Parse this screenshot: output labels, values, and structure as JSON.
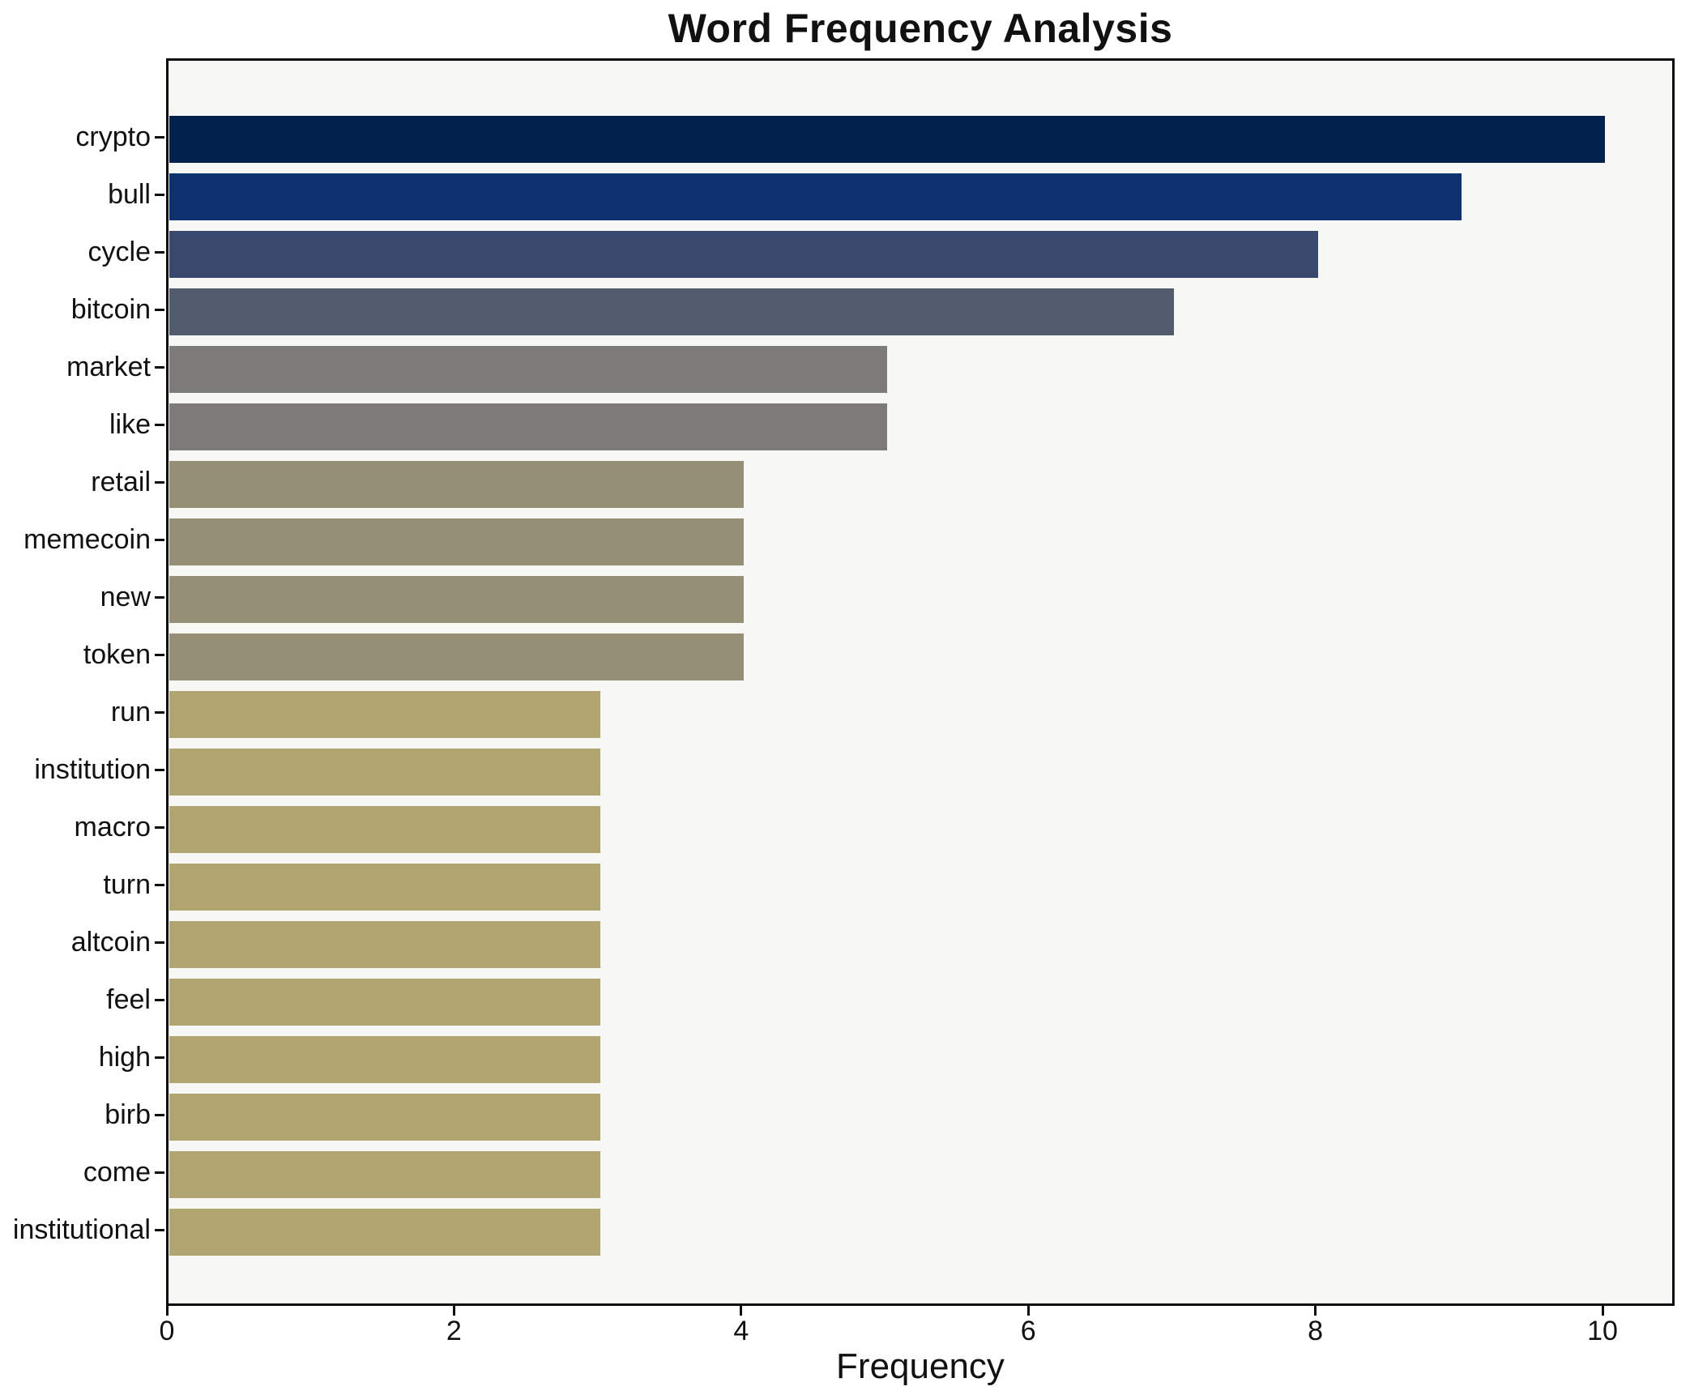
{
  "figure": {
    "background": "#ffffff",
    "plot_background": "#f7f7f5",
    "spine_color": "#0e0e0e",
    "text_color": "#111111"
  },
  "chart_data": {
    "type": "bar",
    "orientation": "horizontal",
    "title": "Word Frequency Analysis",
    "xlabel": "Frequency",
    "ylabel": "",
    "grid": false,
    "legend": false,
    "xlim": [
      0,
      10.5
    ],
    "xticks": [
      0,
      2,
      4,
      6,
      8,
      10
    ],
    "categories": [
      "crypto",
      "bull",
      "cycle",
      "bitcoin",
      "market",
      "like",
      "retail",
      "memecoin",
      "new",
      "token",
      "run",
      "institution",
      "macro",
      "turn",
      "altcoin",
      "feel",
      "high",
      "birb",
      "come",
      "institutional"
    ],
    "values": [
      10,
      9,
      8,
      7,
      5,
      5,
      4,
      4,
      4,
      4,
      3,
      3,
      3,
      3,
      3,
      3,
      3,
      3,
      3,
      3
    ],
    "bar_colors": [
      "#02214c",
      "#0e3270",
      "#39496d",
      "#525a6e",
      "#7c7b77",
      "#7c7b77",
      "#958f75",
      "#958f75",
      "#958f75",
      "#958f75",
      "#b1a671",
      "#b1a671",
      "#b1a671",
      "#b1a671",
      "#b1a671",
      "#b1a671",
      "#b1a671",
      "#b1a671",
      "#b1a671",
      "#b1a671"
    ]
  }
}
